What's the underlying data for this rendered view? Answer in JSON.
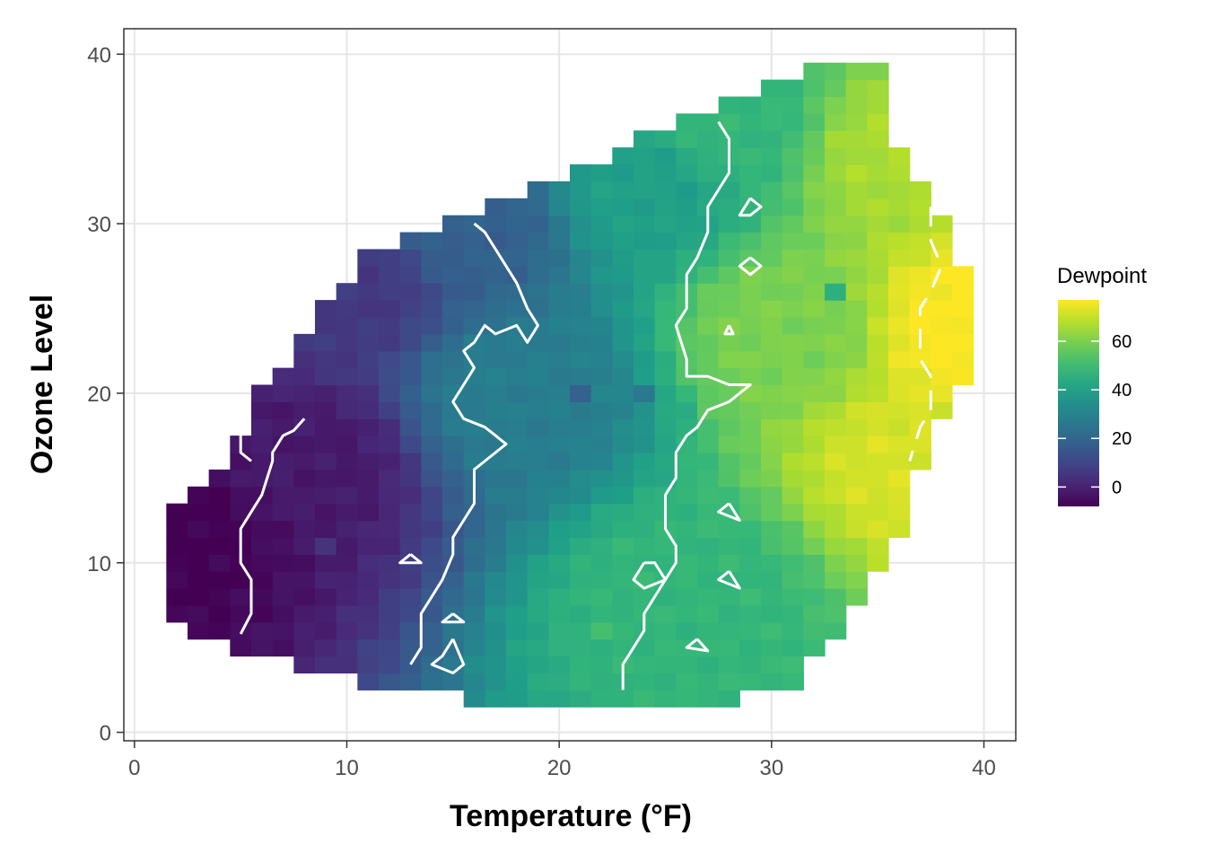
{
  "chart_data": {
    "type": "heatmap",
    "title": "",
    "xlabel": "Temperature (°F)",
    "ylabel": "Ozone Level",
    "xlim": [
      -0.5,
      41.5
    ],
    "ylim": [
      -0.5,
      41.5
    ],
    "x_ticks": [
      "0",
      "10",
      "20",
      "30",
      "40"
    ],
    "y_ticks": [
      "0",
      "10",
      "20",
      "30",
      "40"
    ],
    "grid": true,
    "fill_variable": "Dewpoint",
    "color_scale": "viridis",
    "fill_range": [
      -8,
      77
    ],
    "legend": {
      "title": "Dewpoint",
      "labels": [
        "0",
        "20",
        "40",
        "60"
      ],
      "values": [
        0,
        20,
        40,
        60
      ],
      "position": "right"
    },
    "cell_size": [
      1,
      1
    ],
    "region_rows": [
      {
        "y": 2,
        "x_min": 16,
        "x_max": 28
      },
      {
        "y": 3,
        "x_min": 11,
        "x_max": 31
      },
      {
        "y": 4,
        "x_min": 8,
        "x_max": 31
      },
      {
        "y": 5,
        "x_min": 5,
        "x_max": 32
      },
      {
        "y": 6,
        "x_min": 3,
        "x_max": 33
      },
      {
        "y": 7,
        "x_min": 2,
        "x_max": 33
      },
      {
        "y": 8,
        "x_min": 2,
        "x_max": 34
      },
      {
        "y": 9,
        "x_min": 2,
        "x_max": 34
      },
      {
        "y": 10,
        "x_min": 2,
        "x_max": 35
      },
      {
        "y": 11,
        "x_min": 2,
        "x_max": 35
      },
      {
        "y": 12,
        "x_min": 2,
        "x_max": 36
      },
      {
        "y": 13,
        "x_min": 2,
        "x_max": 36
      },
      {
        "y": 14,
        "x_min": 3,
        "x_max": 36
      },
      {
        "y": 15,
        "x_min": 4,
        "x_max": 36
      },
      {
        "y": 16,
        "x_min": 5,
        "x_max": 37
      },
      {
        "y": 17,
        "x_min": 5,
        "x_max": 37
      },
      {
        "y": 18,
        "x_min": 6,
        "x_max": 37
      },
      {
        "y": 19,
        "x_min": 6,
        "x_max": 38
      },
      {
        "y": 20,
        "x_min": 6,
        "x_max": 38
      },
      {
        "y": 21,
        "x_min": 7,
        "x_max": 39
      },
      {
        "y": 22,
        "x_min": 8,
        "x_max": 39
      },
      {
        "y": 23,
        "x_min": 8,
        "x_max": 39
      },
      {
        "y": 24,
        "x_min": 9,
        "x_max": 39
      },
      {
        "y": 25,
        "x_min": 9,
        "x_max": 39
      },
      {
        "y": 26,
        "x_min": 10,
        "x_max": 39
      },
      {
        "y": 27,
        "x_min": 11,
        "x_max": 39
      },
      {
        "y": 28,
        "x_min": 11,
        "x_max": 38
      },
      {
        "y": 29,
        "x_min": 13,
        "x_max": 38
      },
      {
        "y": 30,
        "x_min": 15,
        "x_max": 38
      },
      {
        "y": 31,
        "x_min": 17,
        "x_max": 37
      },
      {
        "y": 32,
        "x_min": 19,
        "x_max": 37
      },
      {
        "y": 33,
        "x_min": 21,
        "x_max": 36
      },
      {
        "y": 34,
        "x_min": 23,
        "x_max": 36
      },
      {
        "y": 35,
        "x_min": 24,
        "x_max": 35
      },
      {
        "y": 36,
        "x_min": 26,
        "x_max": 35
      },
      {
        "y": 37,
        "x_min": 28,
        "x_max": 35
      },
      {
        "y": 38,
        "x_min": 30,
        "x_max": 35
      },
      {
        "y": 39,
        "x_min": 32,
        "x_max": 35
      }
    ],
    "dewpoint_anchors": [
      {
        "x": 2,
        "y": 12,
        "value": -8
      },
      {
        "x": 8,
        "y": 16,
        "value": -2
      },
      {
        "x": 10,
        "y": 26,
        "value": 6
      },
      {
        "x": 16,
        "y": 30,
        "value": 18
      },
      {
        "x": 18,
        "y": 20,
        "value": 28
      },
      {
        "x": 24,
        "y": 32,
        "value": 40
      },
      {
        "x": 28,
        "y": 36,
        "value": 48
      },
      {
        "x": 26,
        "y": 8,
        "value": 48
      },
      {
        "x": 31,
        "y": 24,
        "value": 60
      },
      {
        "x": 36,
        "y": 34,
        "value": 66
      },
      {
        "x": 37,
        "y": 16,
        "value": 72
      },
      {
        "x": 39,
        "y": 24,
        "value": 77
      }
    ],
    "contours": [
      {
        "level": 0,
        "points": [
          [
            8,
            18.5
          ],
          [
            7.5,
            17.8
          ],
          [
            7,
            17.5
          ],
          [
            6.5,
            16.5
          ],
          [
            6.5,
            16
          ],
          [
            6,
            14
          ],
          [
            5.5,
            13
          ],
          [
            5,
            12
          ],
          [
            5,
            10
          ],
          [
            5.5,
            9
          ],
          [
            5.5,
            7
          ],
          [
            5,
            5.8
          ]
        ]
      },
      {
        "level": 0,
        "points": [
          [
            5,
            17.8
          ],
          [
            5,
            16.5
          ],
          [
            5.5,
            16
          ]
        ]
      },
      {
        "level": 20,
        "points": [
          [
            16,
            30
          ],
          [
            16.5,
            29.5
          ],
          [
            17,
            28.5
          ],
          [
            17.5,
            27.5
          ],
          [
            18,
            26.5
          ],
          [
            18.5,
            25
          ],
          [
            19,
            24
          ],
          [
            18.5,
            23
          ],
          [
            18,
            24
          ],
          [
            17,
            23.5
          ],
          [
            16.5,
            24
          ],
          [
            16,
            23
          ],
          [
            15.5,
            22.5
          ],
          [
            16,
            21.5
          ],
          [
            15.5,
            20.5
          ],
          [
            15,
            19.5
          ],
          [
            15.5,
            18.5
          ],
          [
            16.5,
            18
          ],
          [
            17,
            17.5
          ],
          [
            17.5,
            17
          ],
          [
            17,
            16.5
          ],
          [
            16.5,
            16
          ],
          [
            16,
            15.5
          ],
          [
            16,
            13.5
          ],
          [
            15.5,
            12.5
          ],
          [
            15,
            11.5
          ],
          [
            15,
            10.5
          ],
          [
            14.5,
            9
          ],
          [
            14,
            8
          ],
          [
            13.5,
            7
          ],
          [
            13.5,
            5
          ],
          [
            13,
            4
          ]
        ]
      },
      {
        "level": 20,
        "points": [
          [
            15,
            5.5
          ],
          [
            14.5,
            4.5
          ],
          [
            14,
            4
          ],
          [
            15,
            3.5
          ],
          [
            15.5,
            4
          ],
          [
            15,
            5.5
          ]
        ]
      },
      {
        "level": 40,
        "points": [
          [
            27.5,
            36
          ],
          [
            28,
            35
          ],
          [
            28,
            33
          ],
          [
            27,
            31
          ],
          [
            27,
            29.5
          ],
          [
            26.5,
            28
          ],
          [
            26,
            27
          ],
          [
            26,
            25
          ],
          [
            25.5,
            24
          ],
          [
            26,
            22
          ],
          [
            26,
            21
          ],
          [
            27,
            21
          ],
          [
            28,
            20.5
          ],
          [
            29,
            20.5
          ],
          [
            28.5,
            20
          ],
          [
            28,
            19.5
          ],
          [
            27,
            19
          ],
          [
            26.5,
            18
          ],
          [
            26,
            17.5
          ],
          [
            25.5,
            16.5
          ],
          [
            25.5,
            15
          ],
          [
            25,
            14
          ],
          [
            25,
            12
          ],
          [
            25.5,
            11
          ],
          [
            25.5,
            10
          ],
          [
            25,
            9
          ],
          [
            24.5,
            8
          ],
          [
            24,
            7
          ],
          [
            24,
            6
          ],
          [
            23.5,
            5
          ],
          [
            23,
            4
          ],
          [
            23,
            2.5
          ]
        ]
      },
      {
        "level": 40,
        "points": [
          [
            29,
            31.5
          ],
          [
            28.5,
            30.5
          ],
          [
            29,
            30.5
          ],
          [
            29.5,
            31
          ],
          [
            29,
            31.5
          ]
        ]
      },
      {
        "level": 40,
        "points": [
          [
            29,
            28
          ],
          [
            28.5,
            27.5
          ],
          [
            29,
            27
          ],
          [
            29.5,
            27.5
          ],
          [
            29,
            28
          ]
        ]
      },
      {
        "level": 60,
        "points": [
          [
            37.5,
            31
          ],
          [
            37.5,
            29
          ],
          [
            38,
            27.5
          ],
          [
            37.5,
            26
          ],
          [
            37,
            25
          ],
          [
            37,
            22
          ],
          [
            37.5,
            21
          ],
          [
            37.5,
            19
          ],
          [
            37,
            18
          ],
          [
            36.5,
            16
          ]
        ]
      },
      {
        "level": 20,
        "points": [
          [
            13,
            10.5
          ],
          [
            12.5,
            10
          ],
          [
            13.5,
            10
          ],
          [
            13,
            10.5
          ]
        ]
      },
      {
        "level": 20,
        "points": [
          [
            15,
            7
          ],
          [
            14.5,
            6.5
          ],
          [
            15.5,
            6.5
          ],
          [
            15,
            7
          ]
        ]
      },
      {
        "level": 40,
        "points": [
          [
            24,
            10
          ],
          [
            23.5,
            9
          ],
          [
            24,
            8.5
          ],
          [
            25,
            9
          ],
          [
            24.5,
            10
          ],
          [
            24,
            10
          ]
        ]
      },
      {
        "level": 40,
        "points": [
          [
            28,
            13.5
          ],
          [
            27.5,
            13
          ],
          [
            28.5,
            12.5
          ],
          [
            28,
            13.5
          ]
        ]
      },
      {
        "level": 40,
        "points": [
          [
            28,
            9.5
          ],
          [
            27.5,
            9
          ],
          [
            28.5,
            8.5
          ],
          [
            28,
            9.5
          ]
        ]
      },
      {
        "level": 40,
        "points": [
          [
            26.5,
            5.5
          ],
          [
            26,
            5
          ],
          [
            27,
            4.8
          ],
          [
            26.5,
            5.5
          ]
        ]
      },
      {
        "level": 40,
        "points": [
          [
            28,
            24
          ],
          [
            27.8,
            23.5
          ],
          [
            28.2,
            23.5
          ],
          [
            28,
            24
          ]
        ]
      }
    ],
    "isolated_cells": [
      {
        "x": 9,
        "y": 11,
        "value": 4
      },
      {
        "x": 16,
        "y": 10,
        "value": 22
      },
      {
        "x": 21,
        "y": 20,
        "value": 18
      },
      {
        "x": 24,
        "y": 20,
        "value": 26
      },
      {
        "x": 26,
        "y": 19,
        "value": 44
      },
      {
        "x": 33,
        "y": 26,
        "value": 46
      },
      {
        "x": 22,
        "y": 6,
        "value": 50
      }
    ]
  }
}
